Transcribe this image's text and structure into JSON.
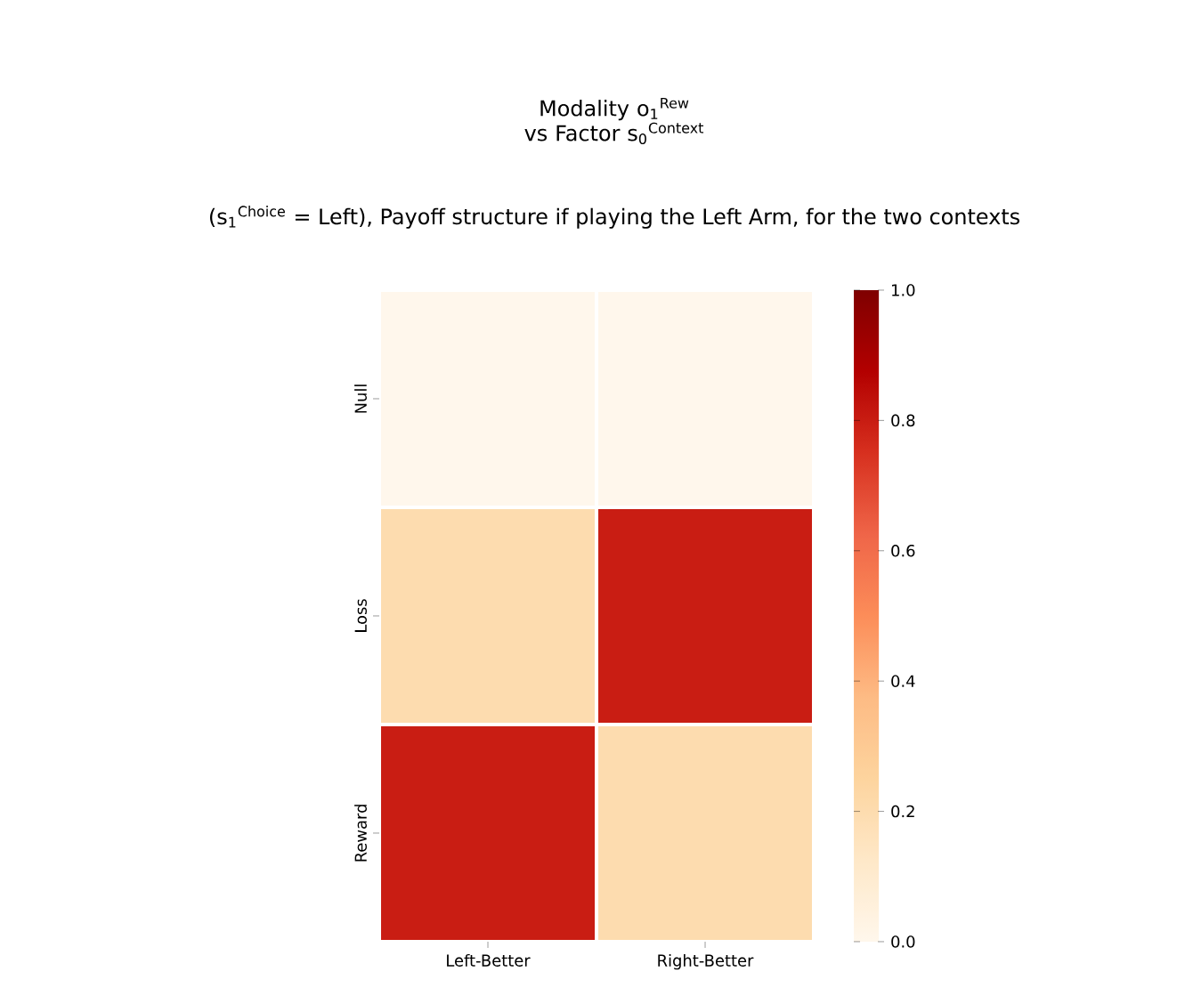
{
  "chart_data": {
    "type": "heatmap",
    "title": "Modality o$_{1}$$^{Rew}$ vs Factor s$_{0}$$^{Context}$",
    "subtitle": "(s$_{1}$$^{Choice}$ = Left), Payoff structure if playing the Left Arm, for the two contexts",
    "categories": [
      "Left-Better",
      "Right-Better"
    ],
    "y_categories": [
      "Null",
      "Loss",
      "Reward"
    ],
    "cells": [
      [
        0.0,
        0.0
      ],
      [
        0.2,
        0.8
      ],
      [
        0.8,
        0.2
      ]
    ],
    "clim": [
      0,
      1
    ],
    "cticks": [
      {
        "value": 0,
        "label": "0.0"
      },
      {
        "value": 0.2,
        "label": "0.2"
      },
      {
        "value": 0.4,
        "label": "0.4"
      },
      {
        "value": 0.6,
        "label": "0.6"
      },
      {
        "value": 0.8,
        "label": "0.8"
      },
      {
        "value": 1,
        "label": "1.0"
      }
    ]
  }
}
